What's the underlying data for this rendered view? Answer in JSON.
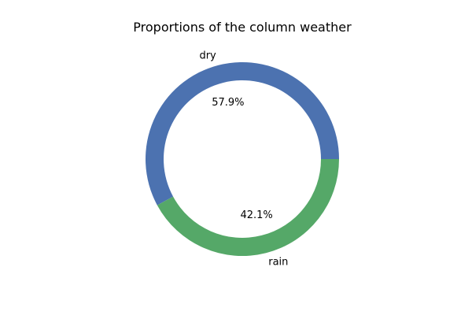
{
  "chart_data": {
    "type": "pie",
    "title": "Proportions of the column weather",
    "categories": [
      "dry",
      "rain"
    ],
    "values": [
      57.9,
      42.1
    ],
    "percent_labels": [
      "57.9%",
      "42.1%"
    ],
    "colors": [
      "#4c72b0",
      "#55a868"
    ],
    "donut": true,
    "legend": "none"
  }
}
